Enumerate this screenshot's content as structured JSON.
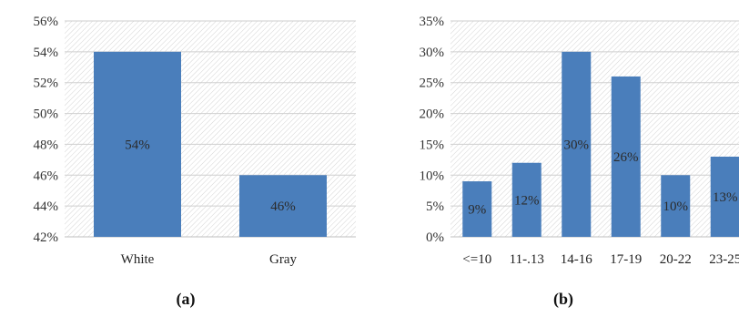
{
  "chart_data": [
    {
      "type": "bar",
      "panel_label": "(a)",
      "categories": [
        "White",
        "Gray"
      ],
      "values": [
        54,
        46
      ],
      "data_labels": [
        "54%",
        "46%"
      ],
      "ylim": [
        42,
        56
      ],
      "ytick_step": 2,
      "ytick_suffix": "%",
      "grid": true,
      "bar_color": "#4a7ebb",
      "title": "",
      "xlabel": "",
      "ylabel": ""
    },
    {
      "type": "bar",
      "panel_label": "(b)",
      "categories": [
        "<=10",
        "11-.13",
        "14-16",
        "17-19",
        "20-22",
        "23-25"
      ],
      "values": [
        9,
        12,
        30,
        26,
        10,
        13
      ],
      "data_labels": [
        "9%",
        "12%",
        "30%",
        "26%",
        "10%",
        "13%"
      ],
      "ylim": [
        0,
        35
      ],
      "ytick_step": 5,
      "ytick_suffix": "%",
      "grid": true,
      "bar_color": "#4a7ebb",
      "title": "",
      "xlabel": "",
      "ylabel": ""
    }
  ]
}
